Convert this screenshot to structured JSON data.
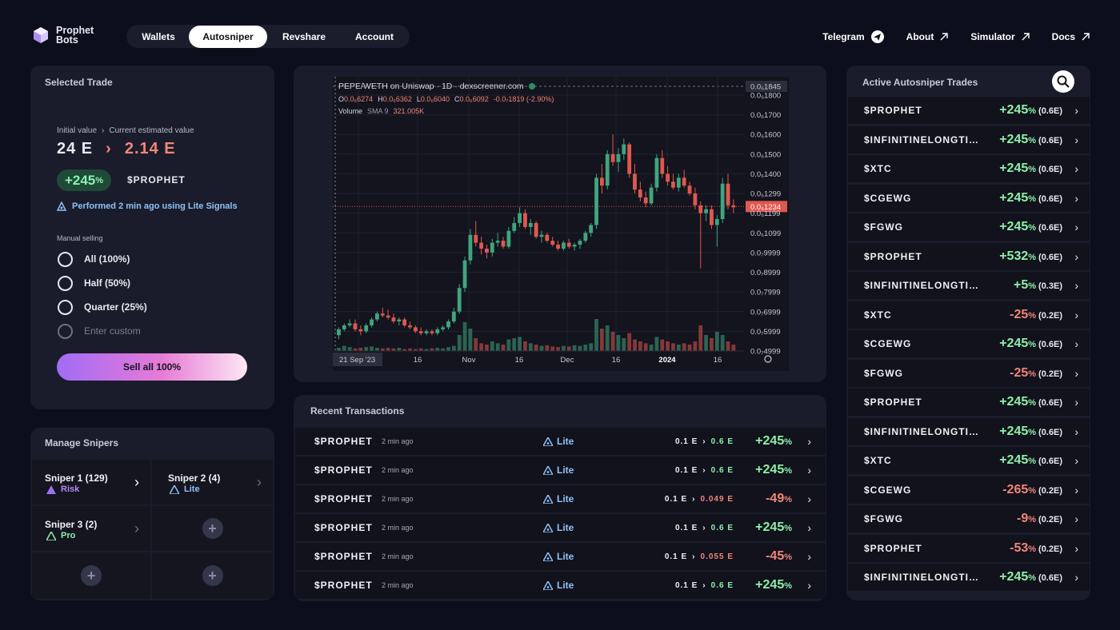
{
  "brand": {
    "line1": "Prophet",
    "line2": "Bots"
  },
  "nav": {
    "tabs": [
      "Wallets",
      "Autosniper",
      "Revshare",
      "Account"
    ],
    "active": "Autosniper"
  },
  "toplinks": {
    "telegram": "Telegram",
    "about": "About",
    "simulator": "Simulator",
    "docs": "Docs"
  },
  "selected_trade": {
    "title": "Selected Trade",
    "initial_label": "Initial value",
    "current_label": "Current estimated value",
    "initial_value": "24 E",
    "current_value": "2.14 E",
    "gain": "+245",
    "gain_unit": "%",
    "token": "$PROPHET",
    "performed": "Performed 2 min ago using Lite Signals",
    "manual_label": "Manual selling",
    "options": [
      "All (100%)",
      "Half (50%)",
      "Quarter (25%)"
    ],
    "custom_placeholder": "Enter custom",
    "sell_label": "Sell all 100%"
  },
  "manage": {
    "title": "Manage Snipers",
    "snipers": [
      {
        "name": "Sniper 1 (129)",
        "tag": "Risk",
        "color": "#b58af7"
      },
      {
        "name": "Sniper 2 (4)",
        "tag": "Lite",
        "color": "#8fc1f7"
      },
      {
        "name": "Sniper 3 (2)",
        "tag": "Pro",
        "color": "#8ef0a9"
      }
    ]
  },
  "chart_header": {
    "pair": "PEPE/WETH on Uniswap · 1D · dexscreener.com",
    "o": "0.0₆6274",
    "h": "0.0₆6362",
    "l": "0.0₆6040",
    "c": "0.0₆6092",
    "chg": "-0.0₇1819 (-2.90%)",
    "volume": "Volume",
    "sma": "SMA 9",
    "volval": "321.005K"
  },
  "chart_data": {
    "type": "candlestick",
    "price_ticks": [
      "0.0₆1845",
      "0.0₆1800",
      "0.0₆1700",
      "0.0₆1600",
      "0.0₆1500",
      "0.0₆1400",
      "0.0₆1299",
      "0.0₆1234",
      "0.0₆1199",
      "0.0₆1099",
      "0.0₇9999",
      "0.0₇8999",
      "0.0₇7999",
      "0.0₇6999",
      "0.0₇5999",
      "0.0₇4999"
    ],
    "x_ticks": [
      "21 Sep '23",
      "16",
      "Nov",
      "16",
      "Dec",
      "16",
      "2024",
      "16"
    ],
    "last_price": "0.0₆1234",
    "up_color": "#3fa57e",
    "down_color": "#e0584f",
    "candles": [
      [
        0.58,
        0.62,
        0.56,
        0.61
      ],
      [
        0.61,
        0.64,
        0.6,
        0.63
      ],
      [
        0.63,
        0.66,
        0.62,
        0.64
      ],
      [
        0.64,
        0.66,
        0.6,
        0.61
      ],
      [
        0.61,
        0.63,
        0.58,
        0.6
      ],
      [
        0.6,
        0.64,
        0.59,
        0.63
      ],
      [
        0.63,
        0.67,
        0.62,
        0.66
      ],
      [
        0.66,
        0.7,
        0.65,
        0.69
      ],
      [
        0.69,
        0.72,
        0.67,
        0.68
      ],
      [
        0.68,
        0.71,
        0.66,
        0.67
      ],
      [
        0.67,
        0.69,
        0.64,
        0.65
      ],
      [
        0.65,
        0.67,
        0.63,
        0.66
      ],
      [
        0.66,
        0.67,
        0.62,
        0.63
      ],
      [
        0.63,
        0.65,
        0.61,
        0.62
      ],
      [
        0.62,
        0.63,
        0.59,
        0.6
      ],
      [
        0.6,
        0.62,
        0.58,
        0.59
      ],
      [
        0.59,
        0.61,
        0.58,
        0.6
      ],
      [
        0.6,
        0.61,
        0.58,
        0.59
      ],
      [
        0.59,
        0.62,
        0.58,
        0.61
      ],
      [
        0.61,
        0.63,
        0.6,
        0.62
      ],
      [
        0.62,
        0.66,
        0.61,
        0.65
      ],
      [
        0.65,
        0.72,
        0.64,
        0.7
      ],
      [
        0.7,
        0.84,
        0.69,
        0.82
      ],
      [
        0.82,
        0.98,
        0.8,
        0.96
      ],
      [
        0.96,
        1.12,
        0.94,
        1.09
      ],
      [
        1.09,
        1.16,
        1.03,
        1.05
      ],
      [
        1.05,
        1.08,
        0.99,
        1.02
      ],
      [
        1.02,
        1.04,
        0.97,
        1.0
      ],
      [
        1.0,
        1.07,
        0.98,
        1.05
      ],
      [
        1.05,
        1.1,
        1.03,
        1.06
      ],
      [
        1.06,
        1.08,
        1.02,
        1.03
      ],
      [
        1.03,
        1.13,
        1.02,
        1.11
      ],
      [
        1.11,
        1.18,
        1.1,
        1.15
      ],
      [
        1.15,
        1.23,
        1.13,
        1.2
      ],
      [
        1.2,
        1.22,
        1.12,
        1.13
      ],
      [
        1.13,
        1.17,
        1.09,
        1.15
      ],
      [
        1.15,
        1.16,
        1.07,
        1.08
      ],
      [
        1.08,
        1.11,
        1.05,
        1.09
      ],
      [
        1.09,
        1.1,
        1.05,
        1.06
      ],
      [
        1.06,
        1.08,
        1.03,
        1.04
      ],
      [
        1.04,
        1.06,
        1.01,
        1.02
      ],
      [
        1.02,
        1.06,
        1.01,
        1.05
      ],
      [
        1.05,
        1.07,
        1.02,
        1.03
      ],
      [
        1.03,
        1.05,
        1.01,
        1.04
      ],
      [
        1.04,
        1.07,
        1.02,
        1.06
      ],
      [
        1.06,
        1.11,
        1.05,
        1.1
      ],
      [
        1.1,
        1.15,
        1.08,
        1.14
      ],
      [
        1.14,
        1.4,
        1.12,
        1.38
      ],
      [
        1.38,
        1.45,
        1.3,
        1.34
      ],
      [
        1.34,
        1.52,
        1.32,
        1.5
      ],
      [
        1.5,
        1.6,
        1.44,
        1.46
      ],
      [
        1.46,
        1.53,
        1.41,
        1.5
      ],
      [
        1.5,
        1.58,
        1.47,
        1.55
      ],
      [
        1.55,
        1.56,
        1.38,
        1.4
      ],
      [
        1.4,
        1.45,
        1.3,
        1.32
      ],
      [
        1.32,
        1.36,
        1.26,
        1.28
      ],
      [
        1.28,
        1.31,
        1.23,
        1.25
      ],
      [
        1.25,
        1.35,
        1.24,
        1.33
      ],
      [
        1.33,
        1.5,
        1.31,
        1.48
      ],
      [
        1.48,
        1.52,
        1.38,
        1.4
      ],
      [
        1.4,
        1.44,
        1.34,
        1.36
      ],
      [
        1.36,
        1.4,
        1.32,
        1.33
      ],
      [
        1.33,
        1.4,
        1.31,
        1.38
      ],
      [
        1.38,
        1.42,
        1.33,
        1.34
      ],
      [
        1.34,
        1.36,
        1.29,
        1.3
      ],
      [
        1.3,
        1.33,
        1.22,
        1.24
      ],
      [
        1.24,
        1.26,
        0.92,
        1.2
      ],
      [
        1.2,
        1.24,
        1.16,
        1.22
      ],
      [
        1.22,
        1.24,
        1.12,
        1.14
      ],
      [
        1.14,
        1.19,
        1.03,
        1.17
      ],
      [
        1.17,
        1.38,
        1.15,
        1.35
      ],
      [
        1.35,
        1.4,
        1.22,
        1.24
      ],
      [
        1.24,
        1.27,
        1.2,
        1.23
      ]
    ],
    "volumes": [
      0.05,
      0.08,
      0.06,
      0.04,
      0.05,
      0.06,
      0.07,
      0.05,
      0.04,
      0.05,
      0.04,
      0.05,
      0.03,
      0.04,
      0.03,
      0.04,
      0.03,
      0.04,
      0.05,
      0.04,
      0.06,
      0.08,
      0.25,
      0.45,
      0.35,
      0.2,
      0.12,
      0.1,
      0.15,
      0.12,
      0.1,
      0.18,
      0.2,
      0.22,
      0.15,
      0.12,
      0.1,
      0.08,
      0.09,
      0.07,
      0.06,
      0.08,
      0.07,
      0.09,
      0.08,
      0.1,
      0.12,
      0.5,
      0.35,
      0.4,
      0.3,
      0.25,
      0.2,
      0.28,
      0.18,
      0.15,
      0.12,
      0.1,
      0.22,
      0.18,
      0.15,
      0.12,
      0.1,
      0.12,
      0.1,
      0.15,
      0.4,
      0.25,
      0.2,
      0.3,
      0.25,
      0.15,
      0.1
    ]
  },
  "recent": {
    "title": "Recent Transactions",
    "rows": [
      {
        "token": "$PROPHET",
        "time": "2 min ago",
        "mode": "Lite",
        "from": "0.1 E",
        "to": "0.6 E",
        "pct": "+245",
        "pos": true
      },
      {
        "token": "$PROPHET",
        "time": "2 min ago",
        "mode": "Lite",
        "from": "0.1 E",
        "to": "0.6 E",
        "pct": "+245",
        "pos": true
      },
      {
        "token": "$PROPHET",
        "time": "2 min ago",
        "mode": "Lite",
        "from": "0.1 E",
        "to": "0.049 E",
        "pct": "-49",
        "pos": false
      },
      {
        "token": "$PROPHET",
        "time": "2 min ago",
        "mode": "Lite",
        "from": "0.1 E",
        "to": "0.6 E",
        "pct": "+245",
        "pos": true
      },
      {
        "token": "$PROPHET",
        "time": "2 min ago",
        "mode": "Lite",
        "from": "0.1 E",
        "to": "0.055 E",
        "pct": "-45",
        "pos": false
      },
      {
        "token": "$PROPHET",
        "time": "2 min ago",
        "mode": "Lite",
        "from": "0.1 E",
        "to": "0.6 E",
        "pct": "+245",
        "pos": true
      }
    ]
  },
  "active": {
    "title": "Active Autosniper Trades",
    "rows": [
      {
        "token": "$PROPHET",
        "pct": "+245",
        "amt": "(0.6E)",
        "pos": true
      },
      {
        "token": "$INFINITINELONGTIUMSTOKEN",
        "pct": "+245",
        "amt": "(0.6E)",
        "pos": true
      },
      {
        "token": "$XTC",
        "pct": "+245",
        "amt": "(0.6E)",
        "pos": true
      },
      {
        "token": "$CGEWG",
        "pct": "+245",
        "amt": "(0.6E)",
        "pos": true
      },
      {
        "token": "$FGWG",
        "pct": "+245",
        "amt": "(0.6E)",
        "pos": true
      },
      {
        "token": "$PROPHET",
        "pct": "+532",
        "amt": "(0.6E)",
        "pos": true
      },
      {
        "token": "$INFINITINELONGTIUMSTOKEN",
        "pct": "+5",
        "amt": "(0.3E)",
        "pos": true
      },
      {
        "token": "$XTC",
        "pct": "-25",
        "amt": "(0.2E)",
        "pos": false
      },
      {
        "token": "$CGEWG",
        "pct": "+245",
        "amt": "(0.6E)",
        "pos": true
      },
      {
        "token": "$FGWG",
        "pct": "-25",
        "amt": "(0.2E)",
        "pos": false
      },
      {
        "token": "$PROPHET",
        "pct": "+245",
        "amt": "(0.6E)",
        "pos": true
      },
      {
        "token": "$INFINITINELONGTIUMSTOKEN",
        "pct": "+245",
        "amt": "(0.6E)",
        "pos": true
      },
      {
        "token": "$XTC",
        "pct": "+245",
        "amt": "(0.6E)",
        "pos": true
      },
      {
        "token": "$CGEWG",
        "pct": "-265",
        "amt": "(0.2E)",
        "pos": false
      },
      {
        "token": "$FGWG",
        "pct": "-9",
        "amt": "(0.2E)",
        "pos": false
      },
      {
        "token": "$PROPHET",
        "pct": "-53",
        "amt": "(0.2E)",
        "pos": false
      },
      {
        "token": "$INFINITINELONGTIUMSTOKEN",
        "pct": "+245",
        "amt": "(0.6E)",
        "pos": true
      }
    ]
  },
  "pct_symbol": "%"
}
